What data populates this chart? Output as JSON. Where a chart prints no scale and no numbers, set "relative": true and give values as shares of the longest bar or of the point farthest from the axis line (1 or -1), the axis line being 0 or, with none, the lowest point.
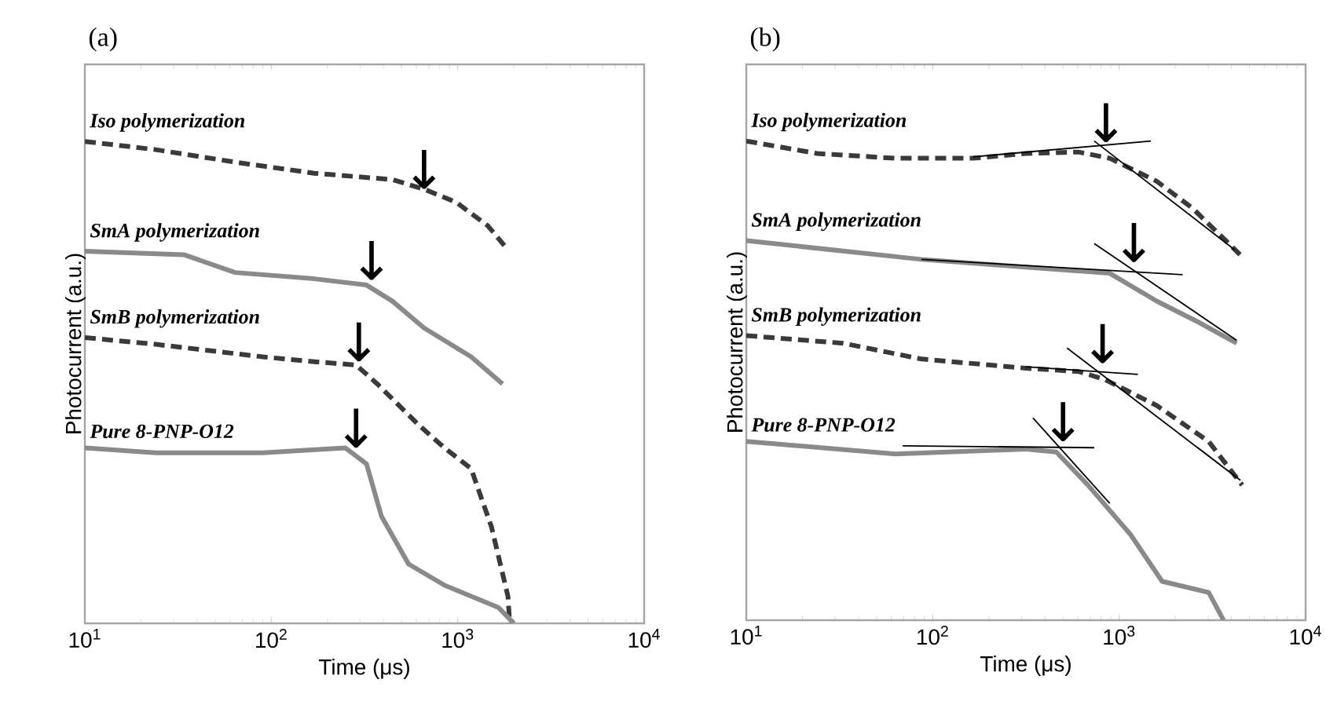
{
  "chart_data": [
    {
      "type": "line",
      "title": "(a)",
      "xlabel": "Time (μs)",
      "ylabel": "Photocurrent (a.u.)",
      "log": "x",
      "relative": true,
      "marker": "none",
      "xlim": [
        10,
        10000
      ],
      "xticks": [
        {
          "value": 10,
          "label": "10$^{1}$"
        },
        {
          "value": 100,
          "label": "10$^{2}$"
        },
        {
          "value": 1000,
          "label": "10$^{3}$"
        },
        {
          "value": 10000,
          "label": "10$^{4}$"
        }
      ],
      "series": [
        {
          "name": "Iso polymerization",
          "color": "#3a3a3a",
          "line_style": "dashed",
          "x": [
            10,
            24,
            64,
            170,
            445,
            660,
            980,
            1450,
            1860
          ],
          "values": [
            1.0,
            0.983,
            0.957,
            0.934,
            0.921,
            0.901,
            0.874,
            0.825,
            0.775
          ]
        },
        {
          "name": "SmA polymerization",
          "color": "#8a8a8a",
          "line_style": "solid",
          "x": [
            10,
            34,
            64,
            170,
            324,
            445,
            660,
            1180,
            1740
          ],
          "values": [
            0.772,
            0.765,
            0.728,
            0.715,
            0.702,
            0.669,
            0.613,
            0.553,
            0.497
          ]
        },
        {
          "name": "SmB polymerization",
          "color": "#3a3a3a",
          "line_style": "dashed",
          "x": [
            10,
            24,
            90,
            170,
            285,
            370,
            620,
            850,
            1180,
            1520,
            1860,
            1900
          ],
          "values": [
            0.593,
            0.579,
            0.553,
            0.543,
            0.536,
            0.497,
            0.411,
            0.364,
            0.321,
            0.199,
            0.056,
            0
          ]
        },
        {
          "name": "Pure 8-PNP-O12",
          "color": "#8a8a8a",
          "line_style": "solid",
          "x": [
            10,
            24,
            90,
            250,
            324,
            390,
            545,
            850,
            1650,
            2000
          ],
          "values": [
            0.364,
            0.354,
            0.354,
            0.364,
            0.331,
            0.222,
            0.123,
            0.079,
            0.033,
            0
          ]
        }
      ],
      "annotations": [
        {
          "text": "↓",
          "x": 660,
          "y": 0.901
        },
        {
          "text": "↓",
          "x": 345,
          "y": 0.712
        },
        {
          "text": "↓",
          "x": 295,
          "y": 0.543
        },
        {
          "text": "↓",
          "x": 285,
          "y": 0.364
        }
      ]
    },
    {
      "type": "line",
      "title": "(b)",
      "xlabel": "Time (μs)",
      "ylabel": "Photocurrent (a.u.)",
      "log": "x",
      "relative": true,
      "marker": "none",
      "xlim": [
        10,
        10000
      ],
      "xticks": [
        {
          "value": 10,
          "label": "10$^{1}$"
        },
        {
          "value": 100,
          "label": "10$^{2}$"
        },
        {
          "value": 1000,
          "label": "10$^{3}$"
        },
        {
          "value": 10000,
          "label": "10$^{4}$"
        }
      ],
      "series": [
        {
          "name": "Iso polymerization",
          "color": "#3a3a3a",
          "line_style": "dashed",
          "x": [
            10,
            24,
            63,
            165,
            315,
            605,
            890,
            1590,
            2470,
            4450
          ],
          "values": [
            1.0,
            0.974,
            0.964,
            0.964,
            0.974,
            0.977,
            0.964,
            0.916,
            0.86,
            0.763
          ]
        },
        {
          "name": "SmA polymerization",
          "color": "#8a8a8a",
          "line_style": "solid",
          "x": [
            10,
            87,
            315,
            890,
            1590,
            2630,
            4270
          ],
          "values": [
            0.792,
            0.753,
            0.737,
            0.724,
            0.666,
            0.623,
            0.578
          ]
        },
        {
          "name": "SmB polymerization",
          "color": "#3a3a3a",
          "line_style": "dashed",
          "x": [
            10,
            33,
            87,
            315,
            605,
            830,
            1590,
            3020,
            4570
          ],
          "values": [
            0.594,
            0.578,
            0.545,
            0.526,
            0.519,
            0.503,
            0.448,
            0.373,
            0.282
          ]
        },
        {
          "name": "Pure 8-PNP-O12",
          "color": "#8a8a8a",
          "line_style": "solid",
          "x": [
            10,
            63,
            315,
            460,
            680,
            1150,
            1700,
            3020,
            3630
          ],
          "values": [
            0.373,
            0.347,
            0.357,
            0.351,
            0.282,
            0.179,
            0.081,
            0.058,
            0
          ]
        },
        {
          "type": "line",
          "color": "#000000",
          "line_style": "solid",
          "x": [
            165,
            1480
          ],
          "values": [
            0.967,
            1.0
          ]
        },
        {
          "type": "line",
          "color": "#000000",
          "line_style": "solid",
          "x": [
            735,
            4170
          ],
          "values": [
            1.0,
            0.773
          ]
        },
        {
          "type": "line",
          "color": "#000000",
          "line_style": "solid",
          "x": [
            87,
            2190
          ],
          "values": [
            0.753,
            0.721
          ]
        },
        {
          "type": "line",
          "color": "#000000",
          "line_style": "solid",
          "x": [
            735,
            4270
          ],
          "values": [
            0.786,
            0.584
          ]
        },
        {
          "type": "line",
          "color": "#000000",
          "line_style": "solid",
          "x": [
            315,
            1260
          ],
          "values": [
            0.529,
            0.513
          ]
        },
        {
          "type": "line",
          "color": "#000000",
          "line_style": "solid",
          "x": [
            525,
            4470
          ],
          "values": [
            0.568,
            0.292
          ]
        },
        {
          "type": "line",
          "color": "#000000",
          "line_style": "solid",
          "x": [
            69,
            735
          ],
          "values": [
            0.364,
            0.36
          ]
        },
        {
          "type": "line",
          "color": "#000000",
          "line_style": "solid",
          "x": [
            345,
            890
          ],
          "values": [
            0.422,
            0.244
          ]
        }
      ],
      "annotations": [
        {
          "text": "↓",
          "x": 850,
          "y": 0.997
        },
        {
          "text": "↓",
          "x": 1200,
          "y": 0.747
        },
        {
          "text": "↓",
          "x": 815,
          "y": 0.536
        },
        {
          "text": "↓",
          "x": 500,
          "y": 0.373
        }
      ]
    }
  ]
}
